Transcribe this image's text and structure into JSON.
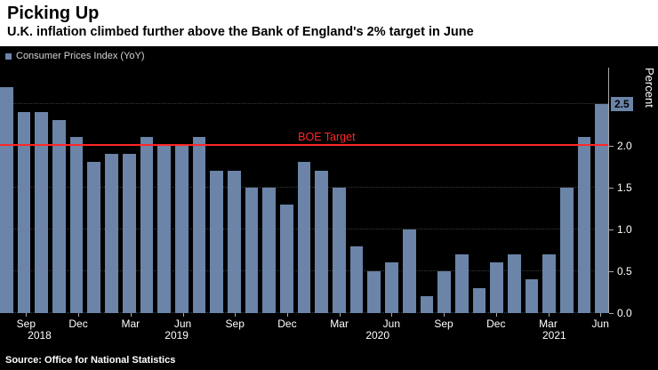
{
  "header": {
    "title": "Picking Up",
    "subtitle": "U.K. inflation climbed further above the Bank of England's 2% target in June"
  },
  "legend": {
    "label": "Consumer Prices Index (YoY)"
  },
  "source": "Source: Office for National Statistics",
  "target": {
    "label": "BOE Target",
    "value": 2.0
  },
  "y_axis": {
    "title": "Percent",
    "last_value_label": "2.5"
  },
  "colors": {
    "bar": "#6b84a8",
    "background": "#000000",
    "header_background": "#ffffff",
    "target_line": "#ff2626",
    "grid": "#3a3a3a",
    "axis": "#a8a8a8",
    "tick_text": "#ffffff",
    "last_value_box_bg": "#6b84a8",
    "last_value_box_text": "#000000"
  },
  "chart_data": {
    "type": "bar",
    "title": "Picking Up",
    "series_name": "Consumer Prices Index (YoY)",
    "ylabel": "Percent",
    "ylim": [
      0,
      2.93
    ],
    "grid": true,
    "legend_position": "top-left",
    "x": [
      "Aug 2018",
      "Sep 2018",
      "Oct 2018",
      "Nov 2018",
      "Dec 2018",
      "Jan 2019",
      "Feb 2019",
      "Mar 2019",
      "Apr 2019",
      "May 2019",
      "Jun 2019",
      "Jul 2019",
      "Aug 2019",
      "Sep 2019",
      "Oct 2019",
      "Nov 2019",
      "Dec 2019",
      "Jan 2020",
      "Feb 2020",
      "Mar 2020",
      "Apr 2020",
      "May 2020",
      "Jun 2020",
      "Jul 2020",
      "Aug 2020",
      "Sep 2020",
      "Oct 2020",
      "Nov 2020",
      "Dec 2020",
      "Jan 2021",
      "Feb 2021",
      "Mar 2021",
      "Apr 2021",
      "May 2021",
      "Jun 2021"
    ],
    "values": [
      2.7,
      2.4,
      2.4,
      2.3,
      2.1,
      1.8,
      1.9,
      1.9,
      2.1,
      2.0,
      2.0,
      2.1,
      1.7,
      1.7,
      1.5,
      1.5,
      1.3,
      1.8,
      1.7,
      1.5,
      0.8,
      0.5,
      0.6,
      1.0,
      0.2,
      0.5,
      0.7,
      0.3,
      0.6,
      0.7,
      0.4,
      0.7,
      1.5,
      2.1,
      2.5
    ],
    "y_ticks": [
      {
        "value": 0.0,
        "label": "0.0"
      },
      {
        "value": 0.5,
        "label": "0.5"
      },
      {
        "value": 1.0,
        "label": "1.0"
      },
      {
        "value": 1.5,
        "label": "1.5"
      },
      {
        "value": 2.0,
        "label": "2.0"
      },
      {
        "value": 2.5,
        "label": "2.5",
        "boxed": true
      }
    ],
    "x_tick_labels": [
      {
        "index": 1,
        "label": "Sep"
      },
      {
        "index": 4,
        "label": "Dec"
      },
      {
        "index": 7,
        "label": "Mar"
      },
      {
        "index": 10,
        "label": "Jun"
      },
      {
        "index": 13,
        "label": "Sep"
      },
      {
        "index": 16,
        "label": "Dec"
      },
      {
        "index": 19,
        "label": "Mar"
      },
      {
        "index": 22,
        "label": "Jun"
      },
      {
        "index": 25,
        "label": "Sep"
      },
      {
        "index": 28,
        "label": "Dec"
      },
      {
        "index": 31,
        "label": "Mar"
      },
      {
        "index": 34,
        "label": "Jun"
      }
    ],
    "year_labels": [
      {
        "label": "2018",
        "pct": 6.5
      },
      {
        "label": "2019",
        "pct": 29
      },
      {
        "label": "2020",
        "pct": 62
      },
      {
        "label": "2021",
        "pct": 91
      }
    ],
    "target_line": {
      "label": "BOE Target",
      "value": 2.0
    }
  }
}
